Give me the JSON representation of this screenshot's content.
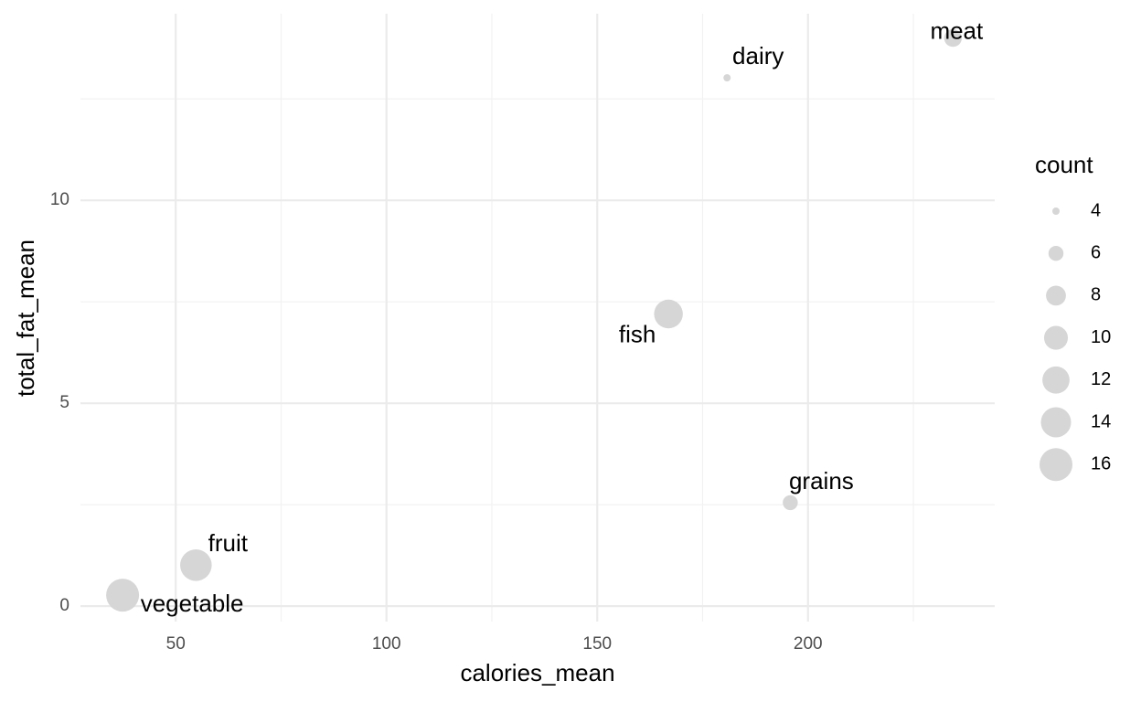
{
  "chart_data": {
    "type": "scatter",
    "x_label": "calories_mean",
    "y_label": "total_fat_mean",
    "categories": [
      "dairy",
      "fish",
      "fruit",
      "grains",
      "meat",
      "vegetable"
    ],
    "x": [
      180.8,
      166.9,
      54.8,
      195.8,
      234.4,
      37.4
    ],
    "values": [
      13.02,
      7.2,
      1.01,
      2.55,
      14.0,
      0.27
    ],
    "sizes": [
      4,
      13,
      15,
      6,
      7,
      16
    ],
    "size_label": "count",
    "size_ticks": [
      4,
      6,
      8,
      10,
      12,
      14,
      16
    ],
    "color": "#d6d6d6",
    "xlim": [
      27.4,
      244.3
    ],
    "xticks": [
      50,
      100,
      150,
      200
    ],
    "xminor": [
      75,
      125,
      175,
      225
    ],
    "ylim": [
      -0.38,
      14.6
    ],
    "yticks": [
      0,
      5,
      10
    ],
    "yminor": [
      2.5,
      7.5,
      12.5
    ],
    "grid": true,
    "legend": "right"
  }
}
